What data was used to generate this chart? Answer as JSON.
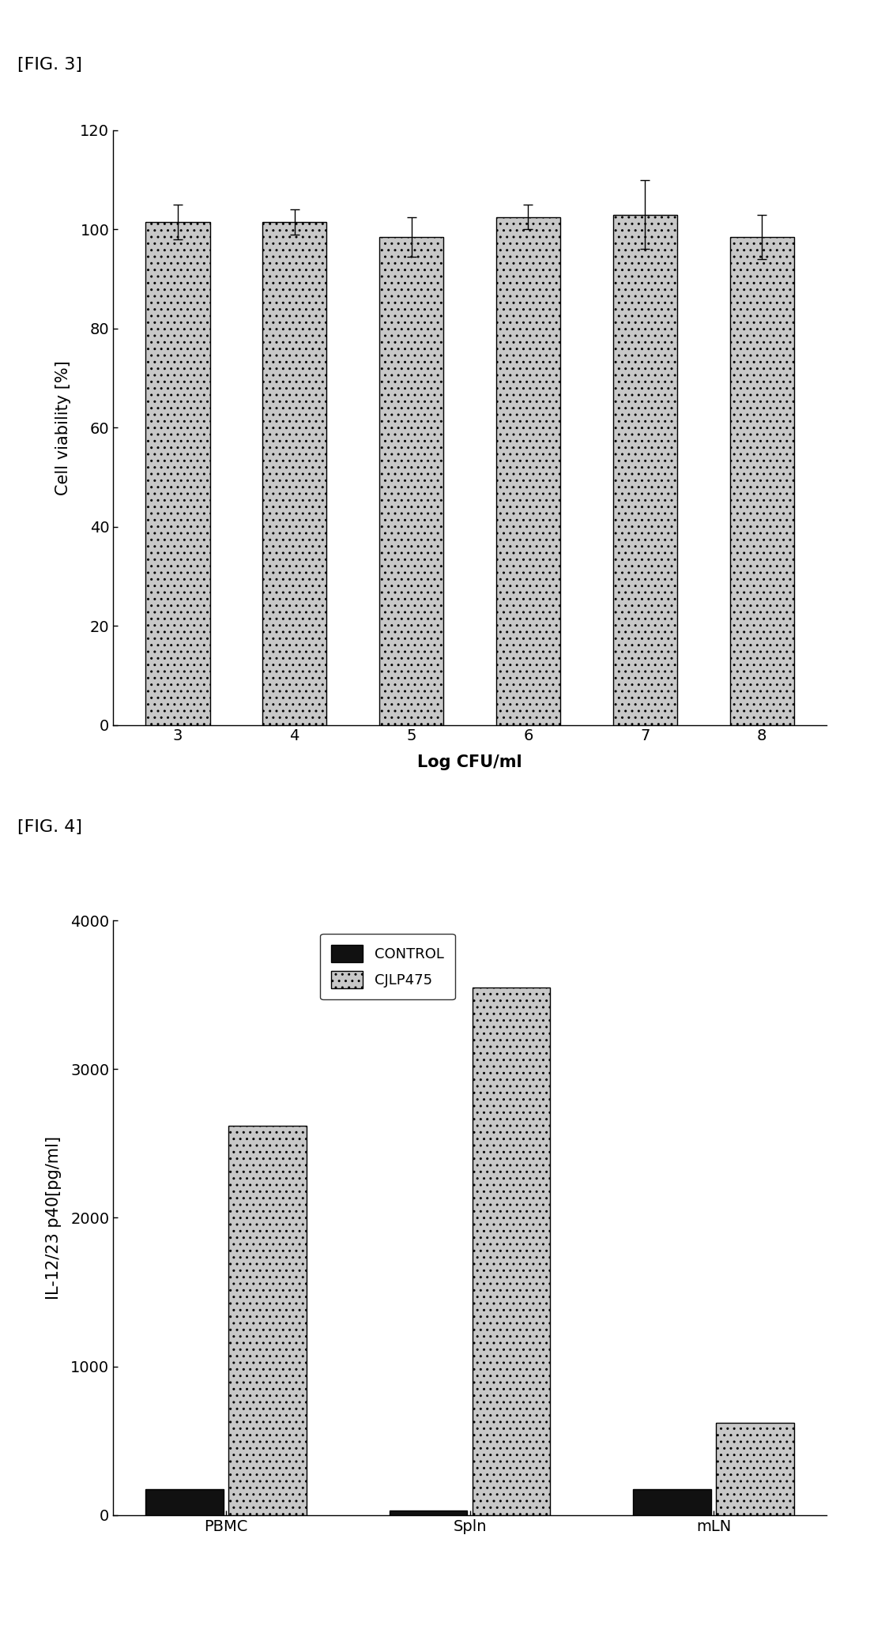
{
  "fig3": {
    "label": "[FIG. 3]",
    "categories": [
      "3",
      "4",
      "5",
      "6",
      "7",
      "8"
    ],
    "values": [
      101.5,
      101.5,
      98.5,
      102.5,
      103.0,
      98.5
    ],
    "errors": [
      3.5,
      2.5,
      4.0,
      2.5,
      7.0,
      4.5
    ],
    "bar_color": "#c8c8c8",
    "bar_edgecolor": "#000000",
    "ylabel": "Cell viability [%]",
    "xlabel": "Log CFU/ml",
    "ylim": [
      0,
      120
    ],
    "yticks": [
      0,
      20,
      40,
      60,
      80,
      100,
      120
    ]
  },
  "fig4": {
    "label": "[FIG. 4]",
    "categories": [
      "PBMC",
      "Spln",
      "mLN"
    ],
    "control_values": [
      175,
      30,
      175
    ],
    "cjlp475_values": [
      2620,
      3550,
      620
    ],
    "control_color": "#111111",
    "cjlp475_color": "#c8c8c8",
    "control_edgecolor": "#000000",
    "cjlp475_edgecolor": "#000000",
    "ylabel": "IL-12/23 p40[pg/ml]",
    "ylim": [
      0,
      4000
    ],
    "yticks": [
      0,
      1000,
      2000,
      3000,
      4000
    ],
    "legend_labels": [
      "CONTROL",
      "CJLP475"
    ]
  },
  "background_color": "#ffffff",
  "font_color": "#000000",
  "label_fontsize": 16,
  "tick_fontsize": 14,
  "axis_label_fontsize": 15
}
